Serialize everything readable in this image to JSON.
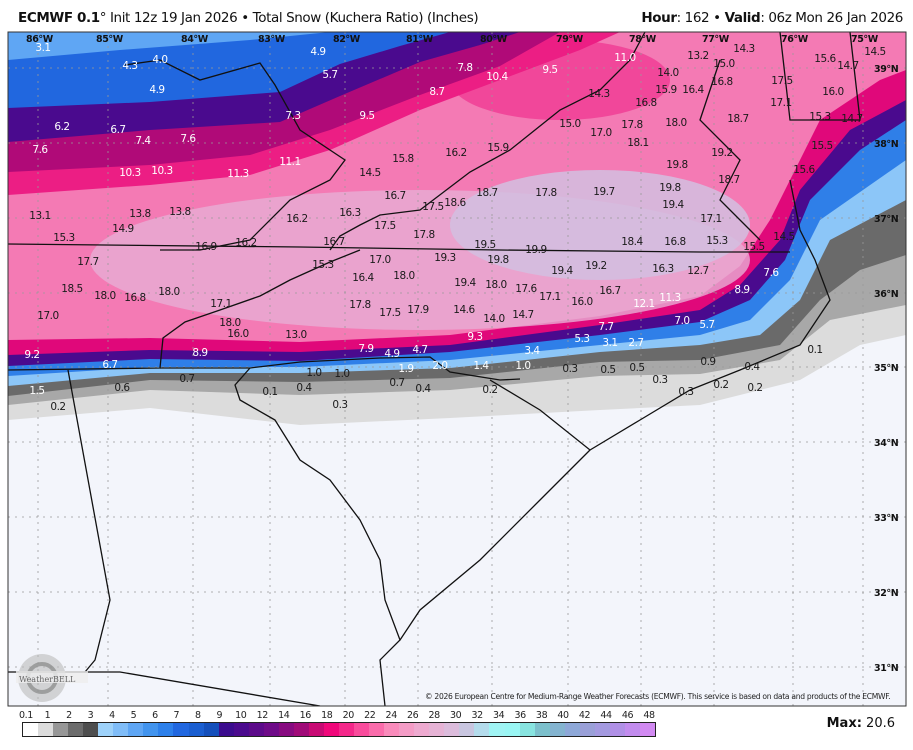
{
  "header": {
    "model": "ECMWF 0.1",
    "degree": "°",
    "init": " Init 12z 19 Jan 2026",
    "sep": " • ",
    "product": "Total Snow (Kuchera Ratio) (Inches)",
    "hour_label": "Hour",
    "hour_value": ": 162",
    "valid_label": "Valid",
    "valid_value": ": 06z Mon 26 Jan 2026"
  },
  "longitude_labels": [
    "86°W",
    "85°W",
    "84°W",
    "83°W",
    "82°W",
    "81°W",
    "80°W",
    "79°W",
    "78°W",
    "77°W",
    "76°W",
    "75°W"
  ],
  "latitude_labels": [
    "39°N",
    "38°N",
    "37°N",
    "36°N",
    "35°N",
    "34°N",
    "33°N",
    "32°N",
    "31°N"
  ],
  "snow_values": [
    "3.1",
    "4.3",
    "4.0",
    "4.9",
    "4.9",
    "5.7",
    "6.2",
    "6.7",
    "7.4",
    "7.6",
    "7.6",
    "7.3",
    "9.5",
    "8.7",
    "10.3",
    "10.3",
    "11.3",
    "11.1",
    "15.8",
    "14.5",
    "16.2",
    "16.7",
    "17.5",
    "18.6",
    "13.1",
    "13.8",
    "13.8",
    "16.2",
    "16.3",
    "7.8",
    "10.4",
    "9.5",
    "11.0",
    "13.2",
    "14.3",
    "15.0",
    "16.8",
    "14.0",
    "15.9",
    "16.4",
    "14.3",
    "16.8",
    "15.0",
    "17.0",
    "17.8",
    "18.1",
    "18.0",
    "15.9",
    "18.7",
    "17.5",
    "17.1",
    "15.6",
    "16.0",
    "14.5",
    "14.7",
    "15.3",
    "14.7",
    "15.5",
    "15.6",
    "19.2",
    "19.8",
    "18.7",
    "19.8",
    "19.7",
    "17.8",
    "18.7",
    "19.4",
    "17.1",
    "15.3",
    "14.9",
    "17.5",
    "17.8",
    "16.9",
    "16.2",
    "16.7",
    "17.7",
    "15.3",
    "17.0",
    "16.4",
    "18.0",
    "19.3",
    "18.5",
    "18.0",
    "16.8",
    "18.0",
    "17.1",
    "17.0",
    "17.8",
    "17.5",
    "17.9",
    "18.0",
    "16.0",
    "13.0",
    "9.2",
    "8.9",
    "6.7",
    "7.9",
    "4.9",
    "4.7",
    "1.9",
    "2.0",
    "1.5",
    "0.7",
    "0.6",
    "1.0",
    "0.4",
    "1.0",
    "0.7",
    "0.4",
    "0.1",
    "0.3",
    "0.2",
    "19.5",
    "19.9",
    "19.8",
    "19.4",
    "19.2",
    "18.4",
    "16.8",
    "15.3",
    "15.5",
    "14.5",
    "16.3",
    "12.7",
    "7.6",
    "8.9",
    "19.4",
    "18.0",
    "17.6",
    "17.1",
    "16.0",
    "16.7",
    "12.1",
    "11.3",
    "14.6",
    "14.0",
    "14.7",
    "9.3",
    "7.7",
    "7.0",
    "5.7",
    "5.3",
    "3.1",
    "2.7",
    "3.4",
    "1.4",
    "1.0",
    "0.3",
    "0.5",
    "0.5",
    "0.1",
    "0.9",
    "0.4",
    "0.3",
    "0.3",
    "0.2",
    "0.2",
    "0.2"
  ],
  "logo": "WeatherBELL",
  "credit": "© 2026 European Centre for Medium-Range Weather Forecasts (ECMWF). This service is based on data and products of the ECMWF.",
  "colorbar": {
    "labels": [
      "0.1",
      "1",
      "2",
      "3",
      "4",
      "5",
      "6",
      "7",
      "8",
      "9",
      "10",
      "12",
      "14",
      "16",
      "18",
      "20",
      "22",
      "24",
      "26",
      "28",
      "30",
      "32",
      "34",
      "36",
      "38",
      "40",
      "42",
      "44",
      "46",
      "48"
    ],
    "colors": [
      "#ffffff",
      "#dcdcdc",
      "#979797",
      "#6c6c6c",
      "#4e4e4e",
      "#9ed2fa",
      "#80bdf8",
      "#5fa6f4",
      "#4294ee",
      "#2d80ea",
      "#2167df",
      "#1a5ed0",
      "#144fbb",
      "#3b0c8e",
      "#4b0a8e",
      "#5c0a8a",
      "#6e0a88",
      "#870a80",
      "#a00a78",
      "#c80a74",
      "#f0077a",
      "#f4288a",
      "#f94c9c",
      "#fa6cab",
      "#f98bbb",
      "#f49cc6",
      "#eeaad0",
      "#e6b3d5",
      "#dcbcdc",
      "#c9c6e0",
      "#b4dcec",
      "#a0f4f4",
      "#9af6f4",
      "#88e4e0",
      "#7cc0cc",
      "#84b4d0",
      "#8ea8d8",
      "#9aa0d8",
      "#a49ae0",
      "#b090e6",
      "#c28cee",
      "#d28af2"
    ]
  },
  "max_label": "Max:",
  "max_value": " 20.6"
}
